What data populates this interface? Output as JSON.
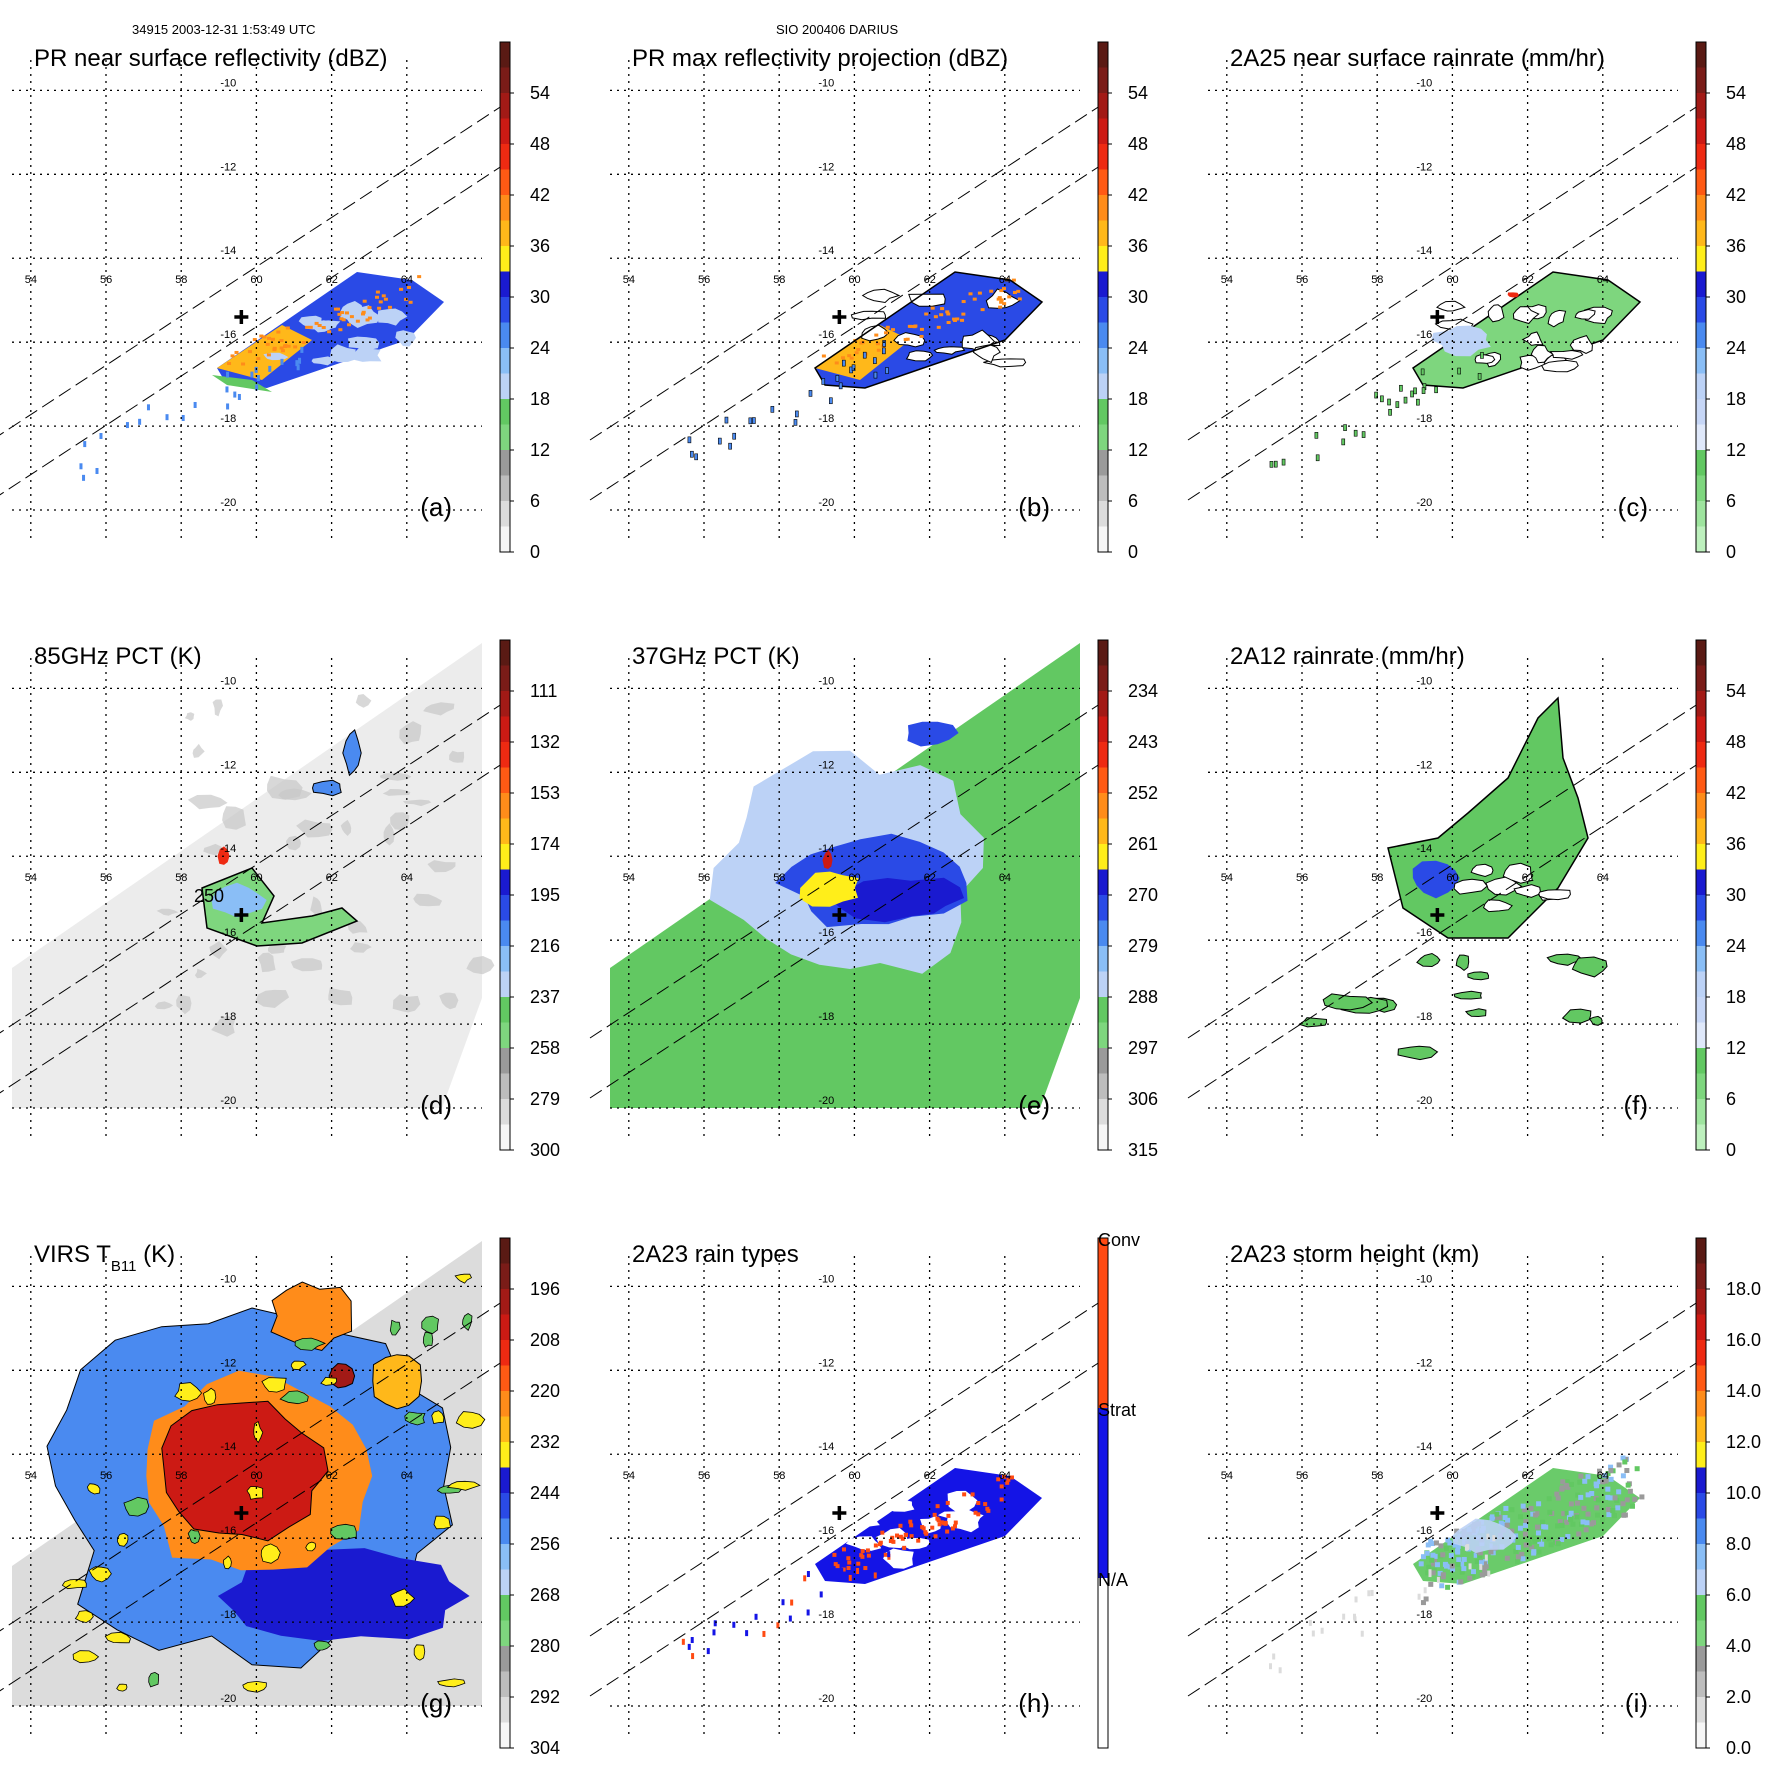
{
  "header": {
    "left": "34915 2003-12-31 1:53:49 UTC",
    "center": "SIO 200406 DARIUS"
  },
  "chart_data": [
    {
      "id": "a",
      "type": "heatmap",
      "title": "PR near surface reflectivity (dBZ)",
      "label": "(a)",
      "domain": "pr",
      "colorbar": {
        "ticks": [
          "54",
          "48",
          "42",
          "36",
          "30",
          "24",
          "18",
          "12",
          "6",
          "0"
        ],
        "colors": [
          "#5a1a14",
          "#7a1c18",
          "#a21a16",
          "#cc1a14",
          "#ee2a12",
          "#ff5a14",
          "#ff8c1a",
          "#ffb81a",
          "#ffee1a",
          "#1a1ad0",
          "#2a4ae6",
          "#4a8af0",
          "#8abef6",
          "#bcd2f6",
          "#62c862",
          "#7ed67e",
          "#9a9a9a",
          "#bdbdbd",
          "#dcdcdc",
          "#f6f6f6"
        ]
      }
    },
    {
      "id": "b",
      "type": "heatmap",
      "title": "PR max reflectivity projection (dBZ)",
      "label": "(b)",
      "domain": "pr",
      "colorbar": {
        "ticks": [
          "54",
          "48",
          "42",
          "36",
          "30",
          "24",
          "18",
          "12",
          "6",
          "0"
        ],
        "colors": [
          "#5a1a14",
          "#7a1c18",
          "#a21a16",
          "#cc1a14",
          "#ee2a12",
          "#ff5a14",
          "#ff8c1a",
          "#ffb81a",
          "#ffee1a",
          "#1a1ad0",
          "#2a4ae6",
          "#4a8af0",
          "#8abef6",
          "#bcd2f6",
          "#62c862",
          "#7ed67e",
          "#9a9a9a",
          "#bdbdbd",
          "#dcdcdc",
          "#f6f6f6"
        ]
      }
    },
    {
      "id": "c",
      "type": "heatmap",
      "title": "2A25 near surface rainrate (mm/hr)",
      "label": "(c)",
      "domain": "pr",
      "colorbar": {
        "ticks": [
          "54",
          "48",
          "42",
          "36",
          "30",
          "24",
          "18",
          "12",
          "6",
          "0"
        ],
        "colors": [
          "#5a1a14",
          "#7a1c18",
          "#a21a16",
          "#cc1a14",
          "#ee2a12",
          "#ff5a14",
          "#ff8c1a",
          "#ffb81a",
          "#ffee1a",
          "#1a1ad0",
          "#2a4ae6",
          "#4a8af0",
          "#8abef6",
          "#bcd2f6",
          "#c6d6f6",
          "#dfe8fa",
          "#62c862",
          "#7ed67e",
          "#9ee49e",
          "#bdf0bd"
        ]
      }
    },
    {
      "id": "d",
      "type": "heatmap",
      "title": "85GHz PCT (K)",
      "label": "(d)",
      "domain": "tmi",
      "annotation": "250",
      "colorbar": {
        "ticks": [
          "111",
          "132",
          "153",
          "174",
          "195",
          "216",
          "237",
          "258",
          "279",
          "300"
        ],
        "colors": [
          "#5a1a14",
          "#7a1c18",
          "#a21a16",
          "#cc1a14",
          "#ee2a12",
          "#ff5a14",
          "#ff8c1a",
          "#ffb81a",
          "#ffee1a",
          "#1a1ad0",
          "#2a4ae6",
          "#4a8af0",
          "#8abef6",
          "#bcd2f6",
          "#62c862",
          "#7ed67e",
          "#9a9a9a",
          "#bdbdbd",
          "#dcdcdc",
          "#f6f6f6"
        ]
      }
    },
    {
      "id": "e",
      "type": "heatmap",
      "title": "37GHz PCT (K)",
      "label": "(e)",
      "domain": "tmi",
      "colorbar": {
        "ticks": [
          "234",
          "243",
          "252",
          "261",
          "270",
          "279",
          "288",
          "297",
          "306",
          "315"
        ],
        "colors": [
          "#5a1a14",
          "#7a1c18",
          "#a21a16",
          "#cc1a14",
          "#ee2a12",
          "#ff5a14",
          "#ff8c1a",
          "#ffb81a",
          "#ffee1a",
          "#1a1ad0",
          "#2a4ae6",
          "#4a8af0",
          "#8abef6",
          "#bcd2f6",
          "#62c862",
          "#7ed67e",
          "#9a9a9a",
          "#bdbdbd",
          "#dcdcdc",
          "#f6f6f6"
        ]
      }
    },
    {
      "id": "f",
      "type": "heatmap",
      "title": "2A12 rainrate (mm/hr)",
      "label": "(f)",
      "domain": "tmi",
      "colorbar": {
        "ticks": [
          "54",
          "48",
          "42",
          "36",
          "30",
          "24",
          "18",
          "12",
          "6",
          "0"
        ],
        "colors": [
          "#5a1a14",
          "#7a1c18",
          "#a21a16",
          "#cc1a14",
          "#ee2a12",
          "#ff5a14",
          "#ff8c1a",
          "#ffb81a",
          "#ffee1a",
          "#1a1ad0",
          "#2a4ae6",
          "#4a8af0",
          "#8abef6",
          "#bcd2f6",
          "#c6d6f6",
          "#dfe8fa",
          "#62c862",
          "#7ed67e",
          "#9ee49e",
          "#bdf0bd"
        ]
      }
    },
    {
      "id": "g",
      "type": "heatmap",
      "title": "VIRS T",
      "title_sub": "B11",
      "title_suffix": " (K)",
      "label": "(g)",
      "domain": "virs",
      "colorbar": {
        "ticks": [
          "196",
          "208",
          "220",
          "232",
          "244",
          "256",
          "268",
          "280",
          "292",
          "304"
        ],
        "colors": [
          "#5a1a14",
          "#7a1c18",
          "#a21a16",
          "#cc1a14",
          "#ee2a12",
          "#ff5a14",
          "#ff8c1a",
          "#ffb81a",
          "#ffee1a",
          "#1a1ad0",
          "#2a4ae6",
          "#4a8af0",
          "#8abef6",
          "#bcd2f6",
          "#62c862",
          "#7ed67e",
          "#9a9a9a",
          "#bdbdbd",
          "#dcdcdc",
          "#f6f6f6"
        ]
      }
    },
    {
      "id": "h",
      "type": "heatmap",
      "title": "2A23 rain types",
      "label": "(h)",
      "domain": "pr",
      "categorical": true,
      "colorbar": {
        "ticks": [
          "Conv",
          "Strat",
          "N/A"
        ],
        "colors": [
          "#ff4a12",
          "#1414e6",
          "#ffffff"
        ]
      }
    },
    {
      "id": "i",
      "type": "heatmap",
      "title": "2A23 storm height (km)",
      "label": "(i)",
      "domain": "pr",
      "colorbar": {
        "ticks": [
          "18.0",
          "16.0",
          "14.0",
          "12.0",
          "10.0",
          "8.0",
          "6.0",
          "4.0",
          "2.0",
          "0.0"
        ],
        "colors": [
          "#5a1a14",
          "#7a1c18",
          "#a21a16",
          "#cc1a14",
          "#ee2a12",
          "#ff5a14",
          "#ff8c1a",
          "#ffb81a",
          "#ffee1a",
          "#1a1ad0",
          "#2a4ae6",
          "#4a8af0",
          "#8abef6",
          "#bcd2f6",
          "#62c862",
          "#7ed67e",
          "#9a9a9a",
          "#bdbdbd",
          "#dcdcdc",
          "#f6f6f6"
        ]
      }
    }
  ],
  "axes": {
    "lon_ticks": [
      "54",
      "56",
      "58",
      "60",
      "62",
      "64"
    ],
    "lat_ticks": [
      "-10",
      "-12",
      "-14",
      "-16",
      "-18",
      "-20"
    ],
    "lon_range": [
      53.5,
      66
    ],
    "lat_range": [
      -21,
      -8.8
    ],
    "storm_center": {
      "lon": 59.6,
      "lat": -15.4
    }
  }
}
